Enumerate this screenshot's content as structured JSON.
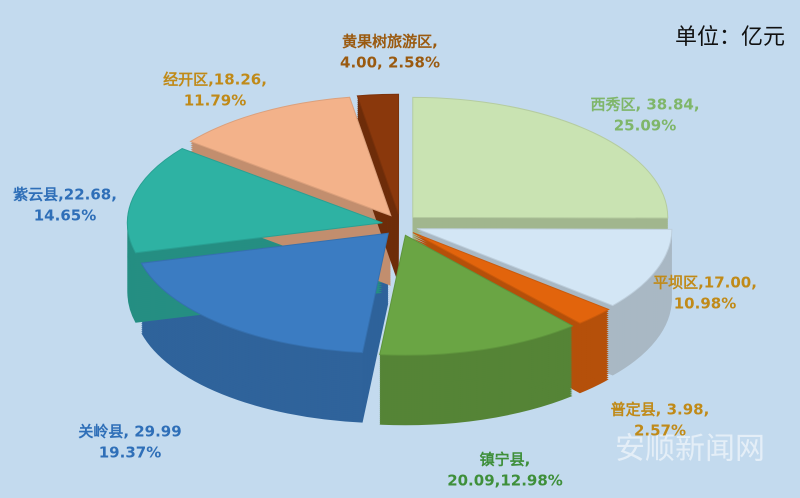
{
  "chart_data": {
    "type": "pie3d",
    "unit": "单位：亿元",
    "watermark": "安顺新闻网",
    "categories": [
      "西秀区",
      "平坝区",
      "普定县",
      "镇宁县",
      "关岭县",
      "紫云县",
      "经开区",
      "黄果树旅游区"
    ],
    "values": [
      38.84,
      17.0,
      3.98,
      20.09,
      29.99,
      22.68,
      18.26,
      4.0
    ],
    "labels": [
      [
        "西秀区, 38.84,",
        "25.09%"
      ],
      [
        "平坝区,17.00,",
        "10.98%"
      ],
      [
        "普定县, 3.98,",
        "2.57%"
      ],
      [
        "镇宁县,",
        "20.09,12.98%"
      ],
      [
        "关岭县, 29.99",
        "19.37%"
      ],
      [
        "紫云县,22.68,",
        "14.65%"
      ],
      [
        "经开区,18.26,",
        "11.79%"
      ],
      [
        "黄果树旅游区,",
        "4.00, 2.58%"
      ]
    ],
    "colors": [
      "#c9e3b2",
      "#d3e6f5",
      "#e2640c",
      "#6aa544",
      "#3b7cc2",
      "#2eb2a3",
      "#f3b28a",
      "#8a380c"
    ],
    "label_colors": [
      "#7fb66a",
      "#c08a18",
      "#c08a18",
      "#3e8f3a",
      "#2f6fb8",
      "#2f6fb8",
      "#c08a18",
      "#9a5a10"
    ]
  }
}
